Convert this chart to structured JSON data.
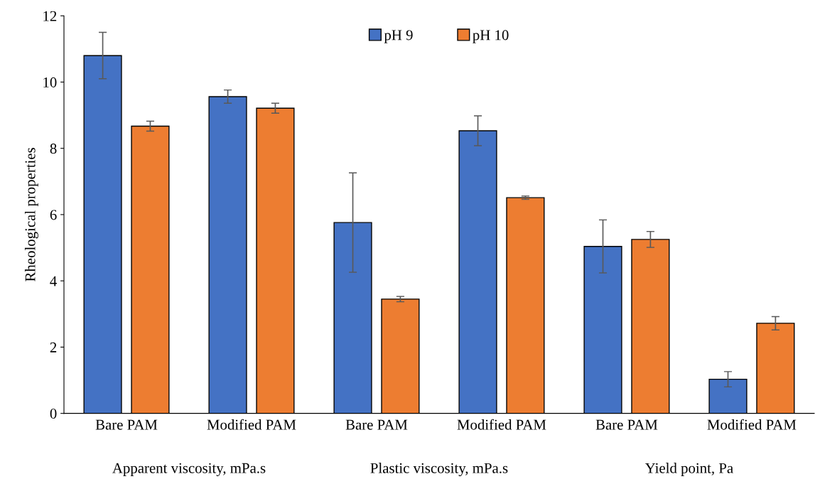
{
  "chart_data": {
    "type": "bar",
    "ylabel": "Rheological properties",
    "categories": [
      "Bare PAM",
      "Modified PAM",
      "Bare PAM",
      "Modified PAM",
      "Bare PAM",
      "Modified PAM"
    ],
    "series": [
      {
        "name": "pH 9",
        "color": "#4472c4",
        "values": [
          10.8,
          9.56,
          5.76,
          8.53,
          5.04,
          1.03
        ],
        "errors": [
          0.7,
          0.2,
          1.5,
          0.45,
          0.8,
          0.23
        ]
      },
      {
        "name": "pH 10",
        "color": "#ed7d31",
        "values": [
          8.67,
          9.21,
          3.45,
          6.51,
          5.25,
          2.72
        ],
        "errors": [
          0.15,
          0.15,
          0.08,
          0.05,
          0.24,
          0.2
        ]
      }
    ],
    "annotations": [
      "Apparent viscosity, mPa.s",
      "Plastic viscosity, mPa.s",
      "Yield point, Pa"
    ],
    "ylim": [
      0,
      12
    ],
    "yticks": [
      0,
      2,
      4,
      6,
      8,
      10,
      12
    ],
    "grid": false,
    "legend": "top"
  }
}
